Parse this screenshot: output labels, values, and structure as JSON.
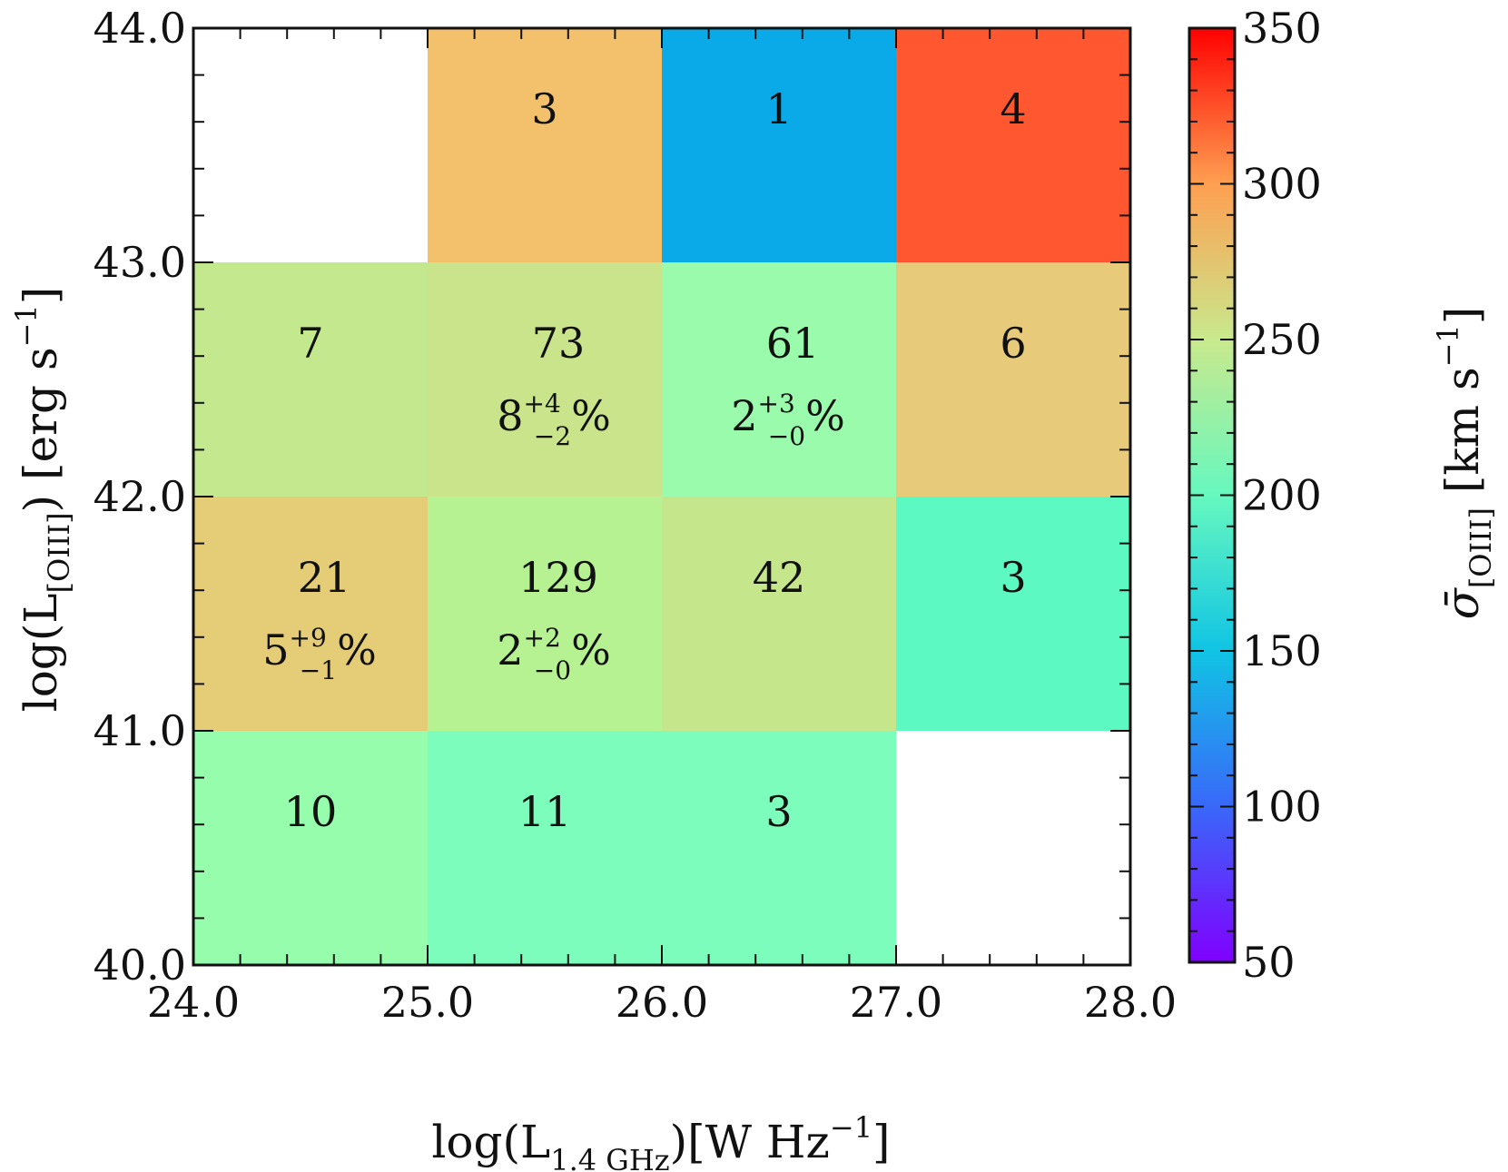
{
  "chart_data": {
    "type": "heatmap",
    "title": "",
    "xlabel": {
      "prefix": "log(L",
      "sub": "1.4 GHz",
      "suffix": ")[W Hz",
      "sup": "−1",
      "close": "]"
    },
    "ylabel": {
      "prefix": "log(L",
      "sub": "[OIII]",
      "suffix": ") [erg s",
      "sup": "−1",
      "close": "]"
    },
    "colorbar_label": {
      "symbol": "σ̄",
      "sub": "[OIII]",
      "units": " [km s",
      "sup": "−1",
      "close": "]"
    },
    "xlim": [
      24.0,
      28.0
    ],
    "ylim": [
      40.0,
      44.0
    ],
    "x_ticks": [
      "24.0",
      "25.0",
      "26.0",
      "27.0",
      "28.0"
    ],
    "y_ticks": [
      "40.0",
      "41.0",
      "42.0",
      "43.0",
      "44.0"
    ],
    "colorbar_range": [
      50,
      350
    ],
    "colorbar_ticks": [
      "50",
      "100",
      "150",
      "200",
      "250",
      "300",
      "350"
    ],
    "cells": [
      {
        "x0": 25.0,
        "x1": 26.0,
        "y0": 43.0,
        "y1": 44.0,
        "sigma": 280,
        "color": "#f3c06b",
        "count": "3"
      },
      {
        "x0": 26.0,
        "x1": 27.0,
        "y0": 43.0,
        "y1": 44.0,
        "sigma": 128,
        "color": "#0aaae9",
        "count": "1"
      },
      {
        "x0": 27.0,
        "x1": 28.0,
        "y0": 43.0,
        "y1": 44.0,
        "sigma": 318,
        "color": "#ff5730",
        "count": "4"
      },
      {
        "x0": 24.0,
        "x1": 25.0,
        "y0": 42.0,
        "y1": 43.0,
        "sigma": 240,
        "color": "#c3e88e",
        "count": "7"
      },
      {
        "x0": 25.0,
        "x1": 26.0,
        "y0": 42.0,
        "y1": 43.0,
        "sigma": 245,
        "color": "#c9e48a",
        "count": "73",
        "frac": {
          "value": "8",
          "plus": "+4",
          "minus": "−2",
          "unit": "%"
        }
      },
      {
        "x0": 26.0,
        "x1": 27.0,
        "y0": 42.0,
        "y1": 43.0,
        "sigma": 215,
        "color": "#99fbab",
        "count": "61",
        "frac": {
          "value": "2",
          "plus": "+3",
          "minus": "−0",
          "unit": "%"
        }
      },
      {
        "x0": 27.0,
        "x1": 28.0,
        "y0": 42.0,
        "y1": 43.0,
        "sigma": 265,
        "color": "#e7cb7a",
        "count": "6"
      },
      {
        "x0": 24.0,
        "x1": 25.0,
        "y0": 41.0,
        "y1": 42.0,
        "sigma": 265,
        "color": "#e5cd78",
        "count": "21",
        "frac": {
          "value": "5",
          "plus": "+9",
          "minus": "−1",
          "unit": "%"
        }
      },
      {
        "x0": 25.0,
        "x1": 26.0,
        "y0": 41.0,
        "y1": 42.0,
        "sigma": 230,
        "color": "#b6f291",
        "count": "129",
        "frac": {
          "value": "2",
          "plus": "+2",
          "minus": "−0",
          "unit": "%"
        }
      },
      {
        "x0": 26.0,
        "x1": 27.0,
        "y0": 41.0,
        "y1": 42.0,
        "sigma": 245,
        "color": "#c6e68c",
        "count": "42"
      },
      {
        "x0": 27.0,
        "x1": 28.0,
        "y0": 41.0,
        "y1": 42.0,
        "sigma": 195,
        "color": "#5cf9c3",
        "count": "3"
      },
      {
        "x0": 24.0,
        "x1": 25.0,
        "y0": 40.0,
        "y1": 41.0,
        "sigma": 215,
        "color": "#95fdab",
        "count": "10"
      },
      {
        "x0": 25.0,
        "x1": 26.0,
        "y0": 40.0,
        "y1": 41.0,
        "sigma": 205,
        "color": "#7cfdbb",
        "count": "11"
      },
      {
        "x0": 26.0,
        "x1": 27.0,
        "y0": 40.0,
        "y1": 41.0,
        "sigma": 205,
        "color": "#7cfdbb",
        "count": "3"
      }
    ],
    "colorbar_stops": [
      {
        "v": 50,
        "color": "#8000ff"
      },
      {
        "v": 100,
        "color": "#3968f9"
      },
      {
        "v": 150,
        "color": "#10c4e4"
      },
      {
        "v": 200,
        "color": "#66f8bf"
      },
      {
        "v": 250,
        "color": "#c9e98d"
      },
      {
        "v": 300,
        "color": "#fe9f51"
      },
      {
        "v": 350,
        "color": "#ff0000"
      }
    ]
  }
}
